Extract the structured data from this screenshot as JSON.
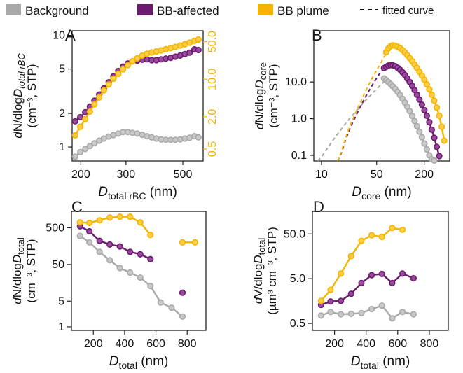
{
  "legend": {
    "items": [
      {
        "label": "Background",
        "color": "#A9A9A9",
        "style": "bar"
      },
      {
        "label": "BB-affected",
        "color": "#6A1B6E",
        "style": "bar"
      },
      {
        "label": "BB plume",
        "color": "#F5B400",
        "style": "bar"
      },
      {
        "label": "fitted curve",
        "color": "#111111",
        "style": "dash"
      }
    ]
  },
  "chart_data": [
    {
      "panel": "A",
      "type": "line",
      "xscale": "log",
      "yscale": "log",
      "y2scale": "log",
      "xlim": [
        185,
        600
      ],
      "ylim": [
        0.75,
        11
      ],
      "y2lim": [
        0.3,
        80
      ],
      "xticks": [
        200,
        300,
        500
      ],
      "xtick_labels": [
        "200",
        "300",
        "500"
      ],
      "yticks": [
        1,
        2,
        5,
        10
      ],
      "ytick_labels": [
        "1",
        "2",
        "5",
        "10"
      ],
      "y2ticks": [
        0.5,
        2.0,
        10.0,
        50.0
      ],
      "y2tick_labels": [
        "0.5",
        "2.0",
        "10.0",
        "50.0"
      ],
      "xlabel_main": "D",
      "xlabel_sub": "total rBC",
      "xlabel_unit": " (nm)",
      "ylabel_line1": "dN/dlogD",
      "ylabel_line1_sub": "total rBC",
      "ylabel_line2": "(cm⁻³, STP)",
      "x": [
        190,
        199,
        208,
        217,
        226,
        236,
        246,
        257,
        268,
        280,
        292,
        305,
        318,
        332,
        347,
        362,
        378,
        394,
        411,
        429,
        448,
        467,
        488,
        509,
        531,
        555,
        575
      ],
      "series": [
        {
          "name": "Background",
          "axis": "left",
          "values": [
            0.82,
            0.9,
            0.96,
            1.02,
            1.08,
            1.14,
            1.19,
            1.24,
            1.28,
            1.32,
            1.36,
            1.36,
            1.34,
            1.32,
            1.29,
            1.25,
            1.22,
            1.19,
            1.17,
            1.16,
            1.16,
            1.16,
            1.17,
            1.19,
            1.21,
            1.25,
            1.22
          ]
        },
        {
          "name": "BB-affected",
          "axis": "left",
          "values": [
            1.7,
            1.85,
            2.05,
            2.3,
            2.6,
            2.95,
            3.35,
            3.8,
            4.3,
            4.8,
            5.25,
            5.6,
            5.85,
            5.95,
            6.05,
            6.1,
            6.0,
            6.0,
            6.1,
            6.2,
            6.3,
            6.45,
            6.6,
            6.8,
            7.0,
            7.5,
            7.4
          ]
        },
        {
          "name": "BB plume",
          "axis": "right",
          "values": [
            0.9,
            1.3,
            1.8,
            2.5,
            3.4,
            4.6,
            6.2,
            8.0,
            10.2,
            12.6,
            15.3,
            18.3,
            21.5,
            24.5,
            27.5,
            29.8,
            31.5,
            33.0,
            34.5,
            36.2,
            38.0,
            40.0,
            42.5,
            45.0,
            48.0,
            52.0,
            55.0
          ]
        }
      ]
    },
    {
      "panel": "B",
      "type": "line",
      "xscale": "log",
      "yscale": "log",
      "xlim": [
        8,
        420
      ],
      "ylim": [
        0.07,
        250
      ],
      "xticks": [
        10,
        50,
        200
      ],
      "xtick_labels": [
        "10",
        "50",
        "200"
      ],
      "yticks": [
        0.1,
        1.0,
        10.0
      ],
      "ytick_labels": [
        "0.1",
        "1.0",
        "10.0"
      ],
      "xlabel_main": "D",
      "xlabel_sub": "core",
      "xlabel_unit": " (nm)",
      "ylabel_line1": "dN/dlogD",
      "ylabel_line1_sub": "core",
      "ylabel_line2": "(cm⁻³, STP)",
      "series": [
        {
          "name": "Background",
          "x": [
            62,
            66,
            70,
            75,
            80,
            86,
            92,
            99,
            106,
            114,
            122,
            131,
            141,
            151,
            162,
            174,
            187,
            201,
            216,
            232,
            249,
            268
          ],
          "values": [
            12.5,
            11.2,
            10.0,
            8.8,
            7.6,
            6.5,
            5.4,
            4.4,
            3.5,
            2.75,
            2.1,
            1.6,
            1.18,
            0.86,
            0.62,
            0.44,
            0.31,
            0.21,
            0.145,
            0.1,
            0.078,
            0.072
          ]
        },
        {
          "name": "BB-affected",
          "x": [
            62,
            66,
            70,
            75,
            80,
            86,
            92,
            99,
            106,
            114,
            122,
            131,
            141,
            151,
            162,
            174,
            187,
            201,
            216,
            232,
            249,
            268,
            288,
            310
          ],
          "values": [
            24,
            26,
            28,
            29,
            28.5,
            27,
            24.5,
            21.5,
            18.5,
            15.5,
            12.5,
            10,
            7.8,
            6,
            4.5,
            3.3,
            2.4,
            1.7,
            1.2,
            0.8,
            0.5,
            0.3,
            0.17,
            0.095
          ]
        },
        {
          "name": "BB plume",
          "x": [
            66,
            70,
            75,
            80,
            86,
            92,
            99,
            106,
            114,
            122,
            131,
            141,
            151,
            162,
            174,
            187,
            201,
            216,
            232,
            249,
            268,
            288,
            310,
            333,
            358
          ],
          "values": [
            65,
            82,
            95,
            100,
            98,
            92,
            84,
            74,
            64,
            54,
            45,
            37,
            30,
            24,
            19,
            15,
            11.5,
            8.6,
            6.3,
            4.5,
            3.1,
            2.0,
            1.2,
            0.6,
            0.25
          ]
        }
      ],
      "fitted_curves": [
        {
          "name": "Background",
          "x": [
            9,
            10,
            12,
            14,
            17,
            20,
            24,
            29,
            35,
            42,
            50,
            60,
            66
          ],
          "values": [
            0.06,
            0.09,
            0.16,
            0.26,
            0.45,
            0.72,
            1.15,
            1.85,
            2.9,
            4.4,
            6.5,
            9.6,
            12.0
          ]
        },
        {
          "name": "BB-affected",
          "x": [
            16,
            18,
            20,
            23,
            27,
            32,
            38,
            45,
            54,
            62
          ],
          "values": [
            0.06,
            0.12,
            0.25,
            0.55,
            1.15,
            2.4,
            4.8,
            8.9,
            16.5,
            24
          ]
        },
        {
          "name": "BB plume",
          "x": [
            16,
            18,
            20,
            23,
            27,
            32,
            38,
            45,
            54,
            62,
            68
          ],
          "values": [
            0.06,
            0.13,
            0.28,
            0.65,
            1.45,
            3.2,
            7.0,
            14,
            28,
            48,
            68
          ]
        }
      ]
    },
    {
      "panel": "C",
      "type": "line",
      "xscale": "linear",
      "yscale": "log",
      "xlim": [
        60,
        920
      ],
      "ylim": [
        0.8,
        1400
      ],
      "xticks": [
        200,
        400,
        600,
        800
      ],
      "xtick_labels": [
        "200",
        "400",
        "600",
        "800"
      ],
      "yticks": [
        1,
        5,
        50,
        500
      ],
      "ytick_labels": [
        "1",
        "5",
        "50",
        "500"
      ],
      "xlabel_main": "D",
      "xlabel_sub": "total",
      "xlabel_unit": " (nm)",
      "ylabel_line1": "dN/dlogD",
      "ylabel_line1_sub": "total",
      "ylabel_line2": "(cm⁻³, STP)",
      "x": [
        115,
        175,
        240,
        305,
        370,
        435,
        500,
        565,
        630,
        700,
        770,
        850
      ],
      "series": [
        {
          "name": "Background",
          "values": [
            300,
            200,
            110,
            65,
            40,
            30,
            22,
            13,
            4.6,
            3.3,
            1.9,
            null
          ]
        },
        {
          "name": "BB-affected",
          "values": [
            550,
            400,
            220,
            175,
            155,
            110,
            95,
            70,
            null,
            null,
            8.5,
            null
          ]
        },
        {
          "name": "BB plume",
          "values": [
            700,
            680,
            800,
            950,
            1000,
            1000,
            700,
            320,
            null,
            null,
            200,
            200
          ]
        }
      ]
    },
    {
      "panel": "D",
      "type": "line",
      "xscale": "linear",
      "yscale": "log",
      "xlim": [
        60,
        920
      ],
      "ylim": [
        0.35,
        160
      ],
      "xticks": [
        200,
        400,
        600,
        800
      ],
      "xtick_labels": [
        "200",
        "400",
        "600",
        "800"
      ],
      "yticks": [
        0.5,
        5.0,
        50.0
      ],
      "ytick_labels": [
        "0.5",
        "5.0",
        "50.0"
      ],
      "xlabel_main": "D",
      "xlabel_sub": "total",
      "xlabel_unit": " (nm)",
      "ylabel_line1": "dV/dlogD",
      "ylabel_line1_sub": "total",
      "ylabel_line2": "(µm³ cm⁻³, STP)",
      "x": [
        115,
        175,
        240,
        305,
        370,
        435,
        500,
        565,
        630,
        700,
        770,
        850
      ],
      "series": [
        {
          "name": "Background",
          "values": [
            0.75,
            0.9,
            0.8,
            0.82,
            0.85,
            1.05,
            1.25,
            0.65,
            0.9,
            0.8,
            null,
            null
          ]
        },
        {
          "name": "BB-affected",
          "values": [
            1.3,
            1.55,
            1.6,
            2.3,
            4.0,
            6.0,
            6.4,
            4.0,
            6.5,
            5.1,
            null,
            null
          ]
        },
        {
          "name": "BB plume",
          "values": [
            1.6,
            2.8,
            6.5,
            16,
            35,
            47,
            43,
            68,
            62,
            null,
            null,
            null
          ]
        }
      ]
    }
  ]
}
